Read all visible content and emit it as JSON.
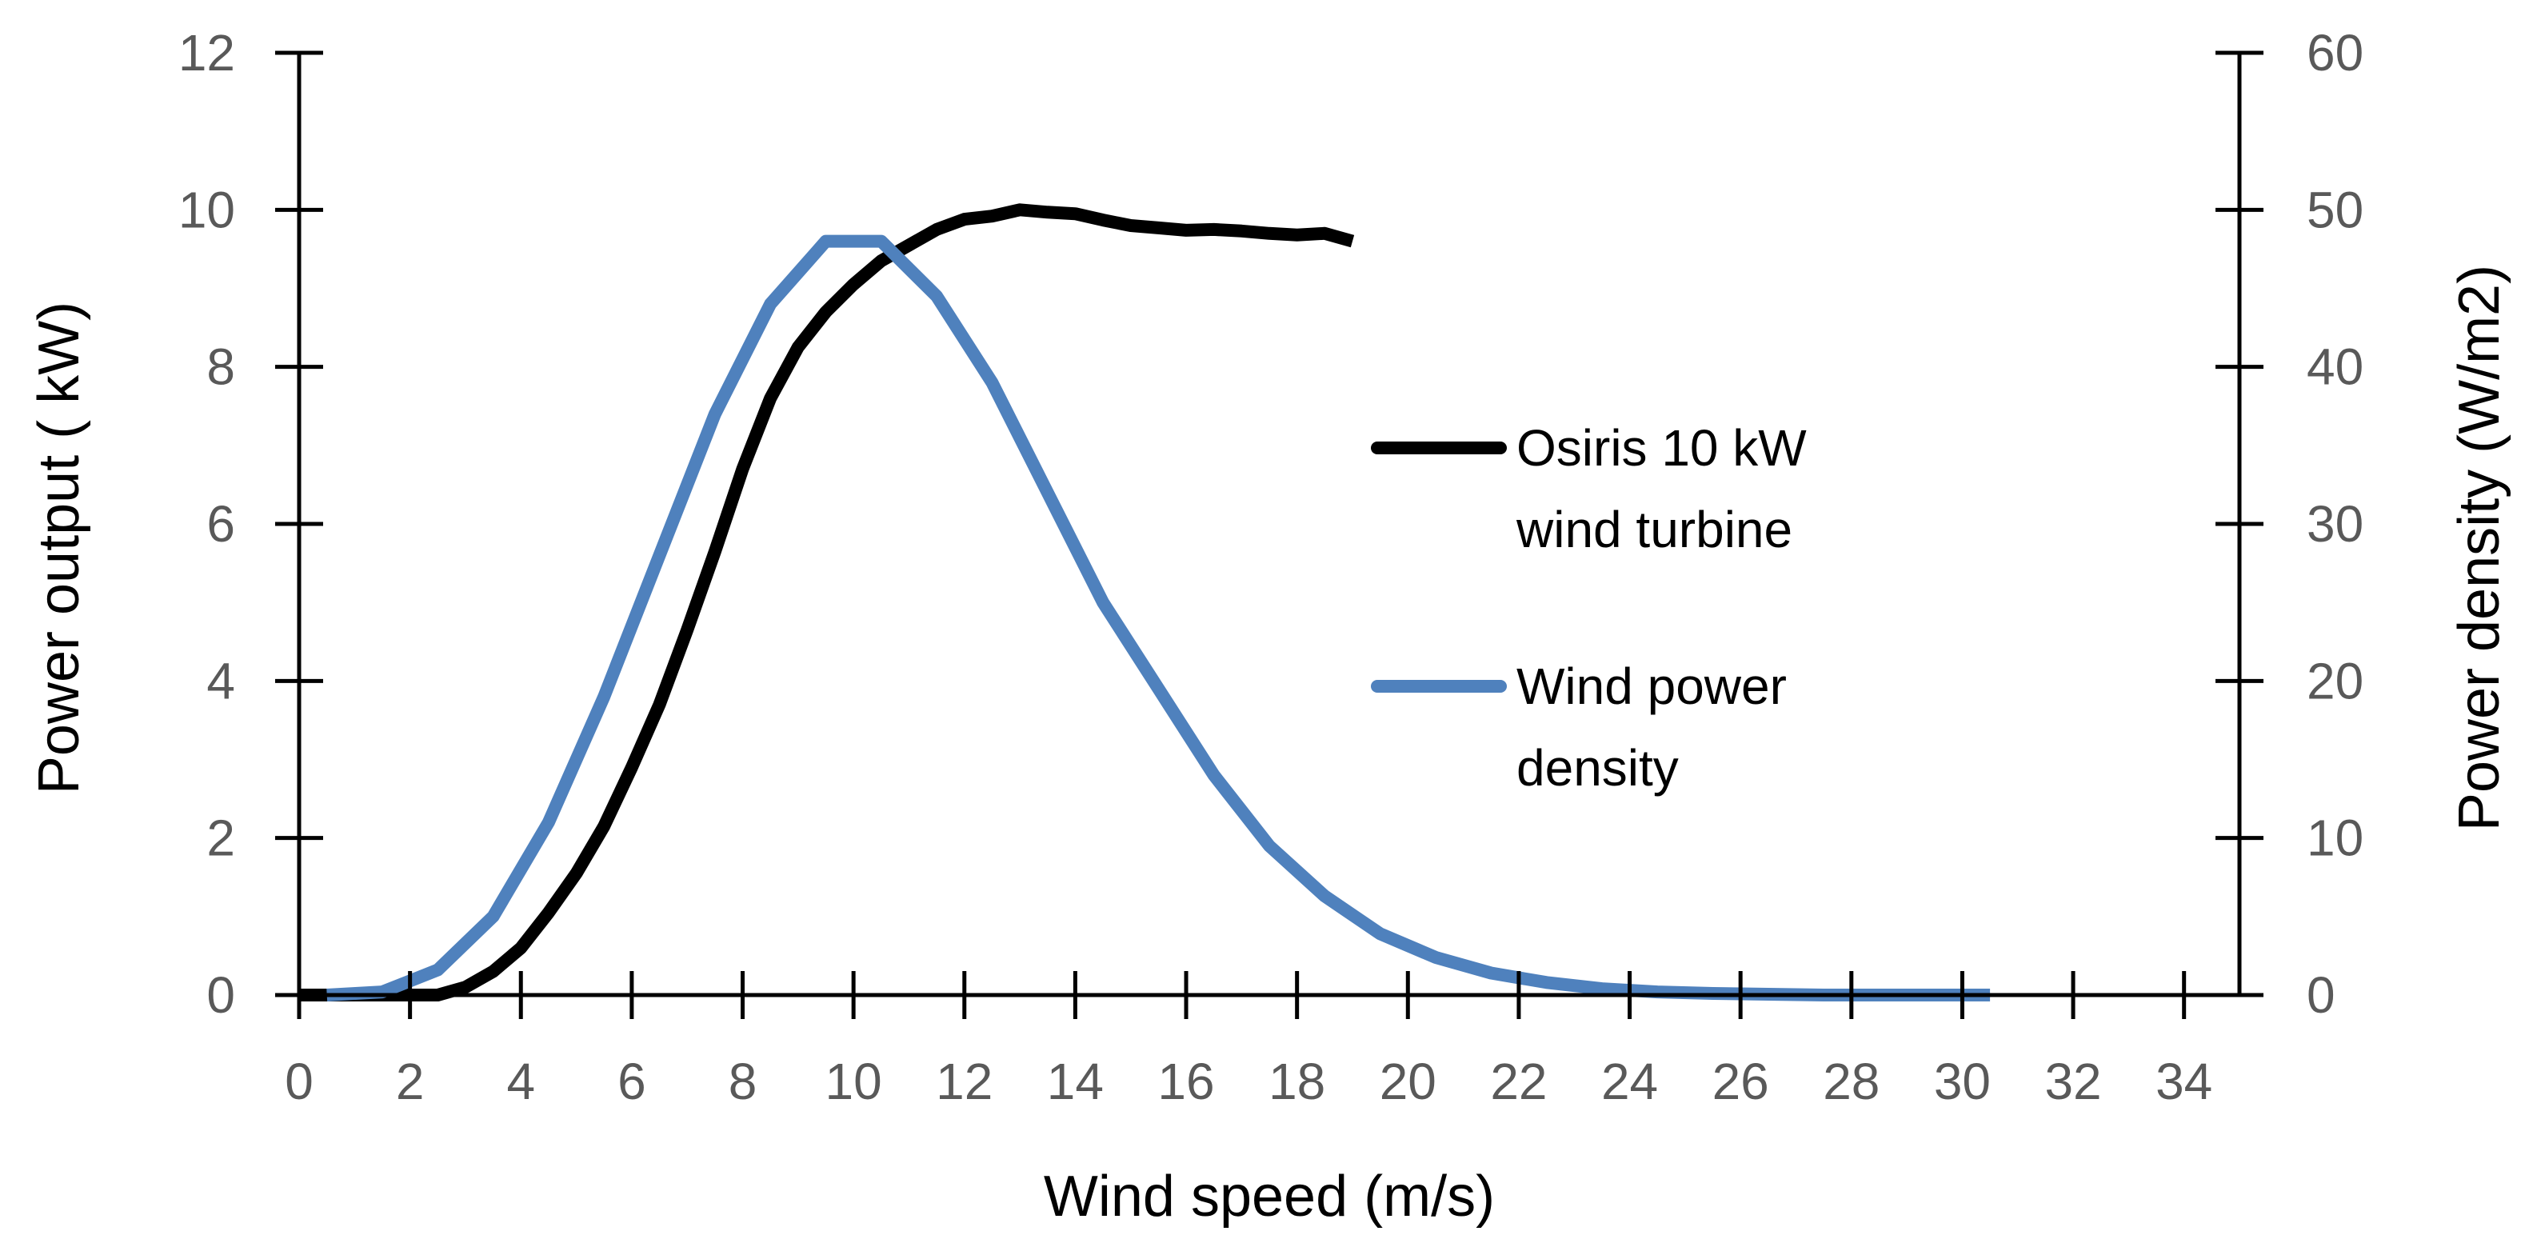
{
  "chart_data": {
    "type": "line",
    "x_axis": {
      "label": "Wind speed (m/s)",
      "range": [
        0,
        35
      ],
      "ticks": [
        0,
        2,
        4,
        6,
        8,
        10,
        12,
        14,
        16,
        18,
        20,
        22,
        24,
        26,
        28,
        30,
        32,
        34
      ]
    },
    "y_axis_left": {
      "label": "Power output  ( kW)",
      "range": [
        0,
        12
      ],
      "ticks": [
        0,
        2,
        4,
        6,
        8,
        10,
        12
      ]
    },
    "y_axis_right": {
      "label": "Power density (W/m2)",
      "range": [
        0,
        60
      ],
      "ticks": [
        0,
        10,
        20,
        30,
        40,
        50,
        60
      ]
    },
    "series": [
      {
        "name": "Osiris 10 kW wind turbine",
        "legend_lines": [
          "Osiris 10 kW",
          "wind turbine"
        ],
        "axis": "left",
        "color": "#000000",
        "x": [
          0,
          1,
          2,
          2.5,
          3,
          3.5,
          4,
          4.5,
          5,
          5.5,
          6,
          6.5,
          7,
          7.5,
          8,
          8.5,
          9,
          9.5,
          10,
          10.5,
          11,
          11.5,
          12,
          12.5,
          13,
          13.5,
          14,
          14.5,
          15,
          15.5,
          16,
          16.5,
          17,
          17.5,
          18,
          18.5,
          19
        ],
        "y": [
          0,
          0,
          0,
          0,
          0.1,
          0.3,
          0.6,
          1.05,
          1.55,
          2.15,
          2.9,
          3.7,
          4.65,
          5.65,
          6.7,
          7.6,
          8.25,
          8.7,
          9.05,
          9.35,
          9.55,
          9.75,
          9.88,
          9.92,
          10.0,
          9.97,
          9.95,
          9.87,
          9.8,
          9.77,
          9.74,
          9.75,
          9.73,
          9.7,
          9.68,
          9.7,
          9.6
        ]
      },
      {
        "name": "Wind power density",
        "legend_lines": [
          "Wind power",
          "density"
        ],
        "axis": "right",
        "color": "#4F81BD",
        "x": [
          0.5,
          1.5,
          2.5,
          3.5,
          4.5,
          5.5,
          6.5,
          7.5,
          8.5,
          9.5,
          10.5,
          11.5,
          12.5,
          13.5,
          14.5,
          15.5,
          16.5,
          17.5,
          18.5,
          19.5,
          20.5,
          21.5,
          22.5,
          23.5,
          24.5,
          25.5,
          26.5,
          27.5,
          28.5,
          29.5,
          30.5
        ],
        "y": [
          0,
          0.2,
          1.6,
          5,
          11,
          19,
          28,
          37,
          44,
          48,
          48,
          44.5,
          39,
          32,
          25,
          19.5,
          14,
          9.5,
          6.3,
          3.9,
          2.4,
          1.4,
          0.8,
          0.4,
          0.2,
          0.1,
          0.05,
          0,
          0,
          0,
          0
        ]
      }
    ]
  }
}
